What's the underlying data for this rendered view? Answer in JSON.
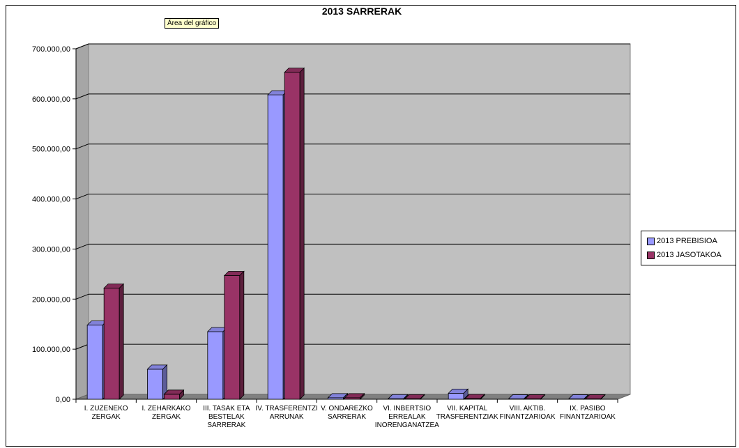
{
  "chart_data": {
    "type": "bar",
    "title": "2013 SARRERAK",
    "tooltip": "Área del gráfico",
    "categories": [
      [
        "I. ZUZENEKO",
        "ZERGAK"
      ],
      [
        "I. ZEHARKAKO",
        "ZERGAK"
      ],
      [
        "III. TASAK ETA",
        "BESTELAK",
        "SARRERAK"
      ],
      [
        "IV. TRASFERENTZI",
        "ARRUNAK"
      ],
      [
        "V. ONDAREZKO",
        "SARRERAK"
      ],
      [
        "VI. INBERTSIO",
        "ERREALAK",
        "INORENGANATZEA"
      ],
      [
        "VII. KAPITAL",
        "TRASFERENTZIAK"
      ],
      [
        "VIII. AKTIB.",
        "FINANTZARIOAK"
      ],
      [
        "IX. PASIBO",
        "FINANTZARIOAK"
      ]
    ],
    "series": [
      {
        "name": "2013 PREBISIOA",
        "color": "#9999ff",
        "values": [
          148000,
          60000,
          135000,
          608000,
          3000,
          1000,
          12000,
          800,
          800
        ]
      },
      {
        "name": "2013 JASOTAKOA",
        "color": "#993366",
        "values": [
          222000,
          10000,
          247000,
          653000,
          3000,
          1000,
          1500,
          800,
          800
        ]
      }
    ],
    "yticks": [
      "0,00",
      "100.000,00",
      "200.000,00",
      "300.000,00",
      "400.000,00",
      "500.000,00",
      "600.000,00",
      "700.000,00"
    ],
    "ylim": [
      0,
      700000
    ],
    "grid": true,
    "legend_position": "right"
  }
}
